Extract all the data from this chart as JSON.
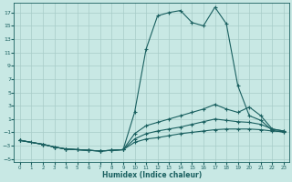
{
  "bg_color": "#c8e8e4",
  "grid_color": "#a8ccc8",
  "line_color": "#1a6060",
  "xlabel": "Humidex (Indice chaleur)",
  "xlim": [
    -0.5,
    23.5
  ],
  "ylim": [
    -5.5,
    18.5
  ],
  "yticks": [
    -5,
    -3,
    -1,
    1,
    3,
    5,
    7,
    9,
    11,
    13,
    15,
    17
  ],
  "xticks": [
    0,
    1,
    2,
    3,
    4,
    5,
    6,
    7,
    8,
    9,
    10,
    11,
    12,
    13,
    14,
    15,
    16,
    17,
    18,
    19,
    20,
    21,
    22,
    23
  ],
  "line1_x": [
    0,
    1,
    2,
    3,
    4,
    5,
    6,
    7,
    8,
    9,
    10,
    11,
    12,
    13,
    14,
    15,
    16,
    17,
    18,
    19,
    20,
    21,
    22,
    23
  ],
  "line1_y": [
    -2.2,
    -2.5,
    -2.8,
    -3.2,
    -3.5,
    -3.6,
    -3.7,
    -3.8,
    -3.7,
    -3.6,
    2.0,
    11.5,
    16.5,
    17.0,
    17.3,
    15.5,
    15.0,
    17.8,
    15.3,
    6.0,
    1.5,
    0.8,
    -0.7,
    -1.0
  ],
  "line2_x": [
    0,
    2,
    3,
    4,
    5,
    6,
    7,
    8,
    9,
    10,
    11,
    12,
    13,
    14,
    15,
    16,
    17,
    18,
    19,
    20,
    21,
    22,
    23
  ],
  "line2_y": [
    -2.2,
    -2.8,
    -3.2,
    -3.5,
    -3.6,
    -3.7,
    -3.8,
    -3.7,
    -3.6,
    -1.2,
    0.0,
    0.5,
    1.0,
    1.5,
    2.0,
    2.5,
    3.2,
    2.5,
    2.0,
    2.8,
    1.5,
    -0.5,
    -0.8
  ],
  "line3_x": [
    0,
    2,
    3,
    4,
    5,
    6,
    7,
    8,
    9,
    10,
    11,
    12,
    13,
    14,
    15,
    16,
    17,
    18,
    19,
    20,
    21,
    22,
    23
  ],
  "line3_y": [
    -2.2,
    -2.8,
    -3.2,
    -3.5,
    -3.6,
    -3.7,
    -3.8,
    -3.7,
    -3.6,
    -2.0,
    -1.2,
    -0.8,
    -0.5,
    -0.2,
    0.2,
    0.6,
    1.0,
    0.8,
    0.6,
    0.5,
    0.2,
    -0.5,
    -0.8
  ],
  "line4_x": [
    0,
    2,
    3,
    4,
    5,
    6,
    7,
    8,
    9,
    10,
    11,
    12,
    13,
    14,
    15,
    16,
    17,
    18,
    19,
    20,
    21,
    22,
    23
  ],
  "line4_y": [
    -2.2,
    -2.8,
    -3.2,
    -3.5,
    -3.6,
    -3.7,
    -3.8,
    -3.7,
    -3.6,
    -2.5,
    -2.0,
    -1.8,
    -1.5,
    -1.2,
    -1.0,
    -0.8,
    -0.6,
    -0.5,
    -0.5,
    -0.5,
    -0.6,
    -0.8,
    -0.9
  ]
}
